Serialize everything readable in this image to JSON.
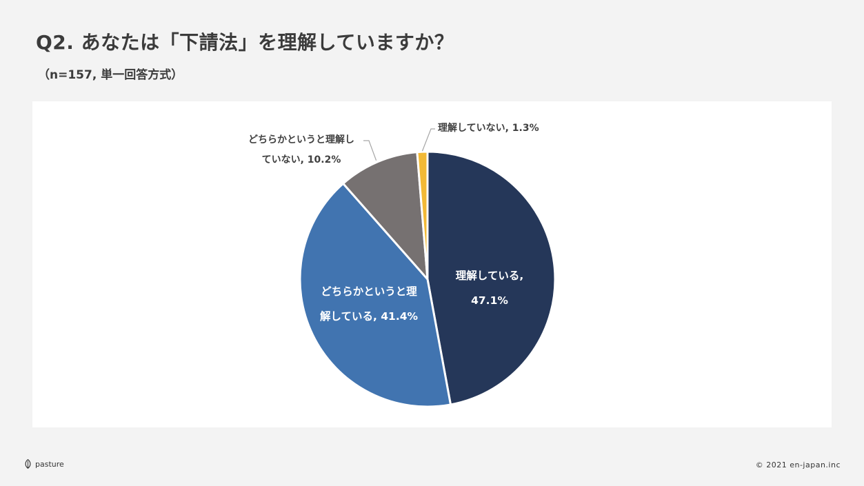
{
  "title": "Q2. あなたは「下請法」を理解していますか？",
  "subtitle": "（n=157, 単一回答方式）",
  "footer": {
    "logo_text": "pasture",
    "copyright": "© 2021 en-japan.inc"
  },
  "colors": {
    "background": "#f3f3f3",
    "panel": "#ffffff",
    "slice_1": "#253759",
    "slice_2": "#4174b0",
    "slice_3": "#767171",
    "slice_4": "#f2b936"
  },
  "chart_data": {
    "type": "pie",
    "start": "12 o'clock, clockwise",
    "slices": [
      {
        "label_line1": "理解している,",
        "label_line2": "47.1%",
        "value": 47.1,
        "color": "#253759"
      },
      {
        "label_line1": "どちらかというと理",
        "label_line2": "解している, 41.4%",
        "value": 41.4,
        "color": "#4174b0"
      },
      {
        "label_line1": "どちらかというと理解し",
        "label_line2": "ていない, 10.2%",
        "value": 10.2,
        "color": "#767171"
      },
      {
        "label_line1": "理解していない, 1.3%",
        "label_line2": "",
        "value": 1.3,
        "color": "#f2b936"
      }
    ]
  }
}
